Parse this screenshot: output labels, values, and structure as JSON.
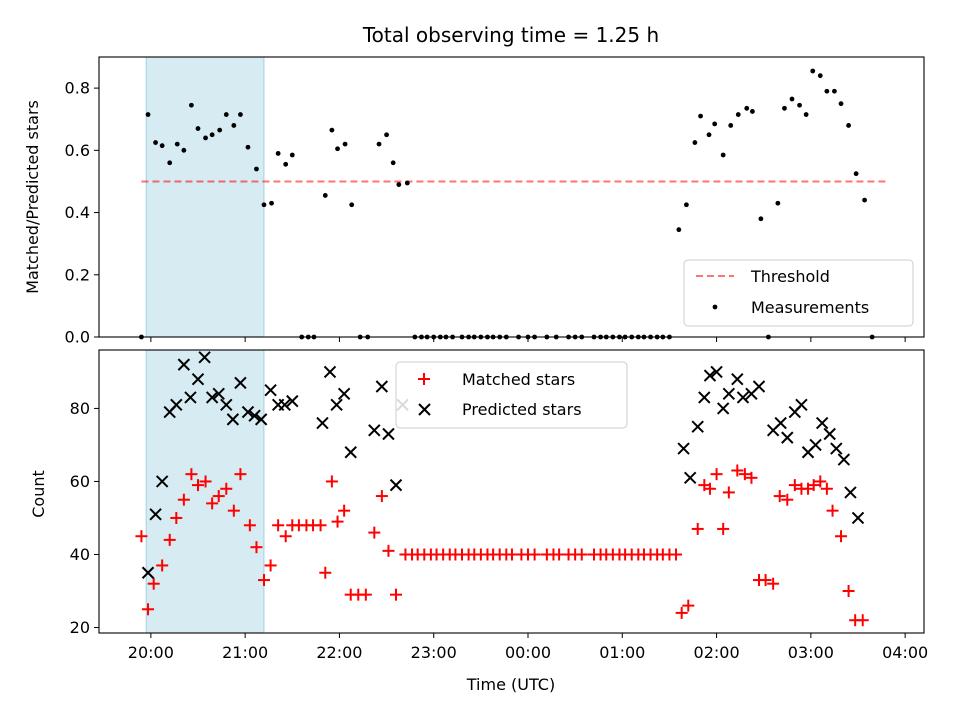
{
  "chart_data": [
    {
      "type": "scatter",
      "title": "Total observing time = 1.25 h",
      "xlabel": "",
      "ylabel": "Matched/Predicted stars",
      "xlim": [
        -0.55,
        8.2
      ],
      "ylim": [
        0,
        0.9
      ],
      "yticks": [
        "0.0",
        "0.2",
        "0.4",
        "0.6",
        "0.8"
      ],
      "shaded_x": [
        -0.05,
        1.2
      ],
      "shaded_color": "#add8e6",
      "legend_position": "lower right",
      "legend": {
        "threshold": "Threshold",
        "measurements": "Measurements"
      },
      "threshold": {
        "name": "Threshold",
        "value": 0.5,
        "x_range": [
          -0.1,
          7.8
        ],
        "color": "#ff0000"
      },
      "series": [
        {
          "name": "Measurements",
          "color": "#000000",
          "points": [
            [
              -0.1,
              0.0
            ],
            [
              -0.03,
              0.715
            ],
            [
              0.05,
              0.625
            ],
            [
              0.12,
              0.615
            ],
            [
              0.2,
              0.56
            ],
            [
              0.28,
              0.62
            ],
            [
              0.35,
              0.6
            ],
            [
              0.43,
              0.745
            ],
            [
              0.5,
              0.67
            ],
            [
              0.58,
              0.64
            ],
            [
              0.65,
              0.65
            ],
            [
              0.73,
              0.665
            ],
            [
              0.8,
              0.715
            ],
            [
              0.88,
              0.68
            ],
            [
              0.95,
              0.715
            ],
            [
              1.03,
              0.61
            ],
            [
              1.12,
              0.54
            ],
            [
              1.2,
              0.425
            ],
            [
              1.28,
              0.43
            ],
            [
              1.35,
              0.59
            ],
            [
              1.43,
              0.555
            ],
            [
              1.5,
              0.585
            ],
            [
              1.6,
              0.0
            ],
            [
              1.67,
              0.0
            ],
            [
              1.73,
              0.0
            ],
            [
              1.85,
              0.455
            ],
            [
              1.92,
              0.665
            ],
            [
              1.98,
              0.605
            ],
            [
              2.06,
              0.62
            ],
            [
              2.13,
              0.425
            ],
            [
              2.22,
              0.0
            ],
            [
              2.3,
              0.0
            ],
            [
              2.42,
              0.62
            ],
            [
              2.5,
              0.65
            ],
            [
              2.57,
              0.56
            ],
            [
              2.63,
              0.49
            ],
            [
              2.72,
              0.495
            ],
            [
              2.8,
              0.0
            ],
            [
              2.87,
              0.0
            ],
            [
              2.93,
              0.0
            ],
            [
              3.0,
              0.0
            ],
            [
              3.07,
              0.0
            ],
            [
              3.13,
              0.0
            ],
            [
              3.2,
              0.0
            ],
            [
              3.3,
              0.0
            ],
            [
              3.37,
              0.0
            ],
            [
              3.43,
              0.0
            ],
            [
              3.5,
              0.0
            ],
            [
              3.57,
              0.0
            ],
            [
              3.63,
              0.0
            ],
            [
              3.7,
              0.0
            ],
            [
              3.77,
              0.0
            ],
            [
              3.9,
              0.0
            ],
            [
              4.0,
              0.0
            ],
            [
              4.07,
              0.0
            ],
            [
              4.2,
              0.0
            ],
            [
              4.3,
              0.0
            ],
            [
              4.43,
              0.0
            ],
            [
              4.5,
              0.0
            ],
            [
              4.57,
              0.0
            ],
            [
              4.7,
              0.0
            ],
            [
              4.77,
              0.0
            ],
            [
              4.83,
              0.0
            ],
            [
              4.9,
              0.0
            ],
            [
              4.97,
              0.0
            ],
            [
              5.03,
              0.0
            ],
            [
              5.1,
              0.0
            ],
            [
              5.17,
              0.0
            ],
            [
              5.23,
              0.0
            ],
            [
              5.3,
              0.0
            ],
            [
              5.37,
              0.0
            ],
            [
              5.43,
              0.0
            ],
            [
              5.5,
              0.0
            ],
            [
              5.6,
              0.345
            ],
            [
              5.68,
              0.425
            ],
            [
              5.77,
              0.625
            ],
            [
              5.83,
              0.71
            ],
            [
              5.92,
              0.65
            ],
            [
              5.98,
              0.685
            ],
            [
              6.07,
              0.585
            ],
            [
              6.15,
              0.68
            ],
            [
              6.23,
              0.715
            ],
            [
              6.32,
              0.735
            ],
            [
              6.38,
              0.725
            ],
            [
              6.47,
              0.38
            ],
            [
              6.55,
              0.0
            ],
            [
              6.65,
              0.43
            ],
            [
              6.72,
              0.735
            ],
            [
              6.8,
              0.765
            ],
            [
              6.88,
              0.745
            ],
            [
              6.95,
              0.715
            ],
            [
              7.02,
              0.855
            ],
            [
              7.1,
              0.84
            ],
            [
              7.17,
              0.79
            ],
            [
              7.25,
              0.79
            ],
            [
              7.32,
              0.75
            ],
            [
              7.4,
              0.68
            ],
            [
              7.48,
              0.525
            ],
            [
              7.57,
              0.44
            ],
            [
              7.65,
              0.0
            ]
          ]
        }
      ]
    },
    {
      "type": "scatter",
      "title": "",
      "xlabel": "Time (UTC)",
      "ylabel": "Count",
      "xlim": [
        -0.55,
        8.2
      ],
      "ylim": [
        18.5,
        96
      ],
      "yticks": [
        "20",
        "40",
        "60",
        "80"
      ],
      "xticks": [
        "20:00",
        "21:00",
        "22:00",
        "23:00",
        "00:00",
        "01:00",
        "02:00",
        "03:00",
        "04:00"
      ],
      "shaded_x": [
        -0.05,
        1.2
      ],
      "legend_position": "upper center",
      "legend": {
        "matched": "Matched stars",
        "predicted": "Predicted stars"
      },
      "series": [
        {
          "name": "Matched stars",
          "color": "#ff0000",
          "marker": "plus",
          "points": [
            [
              -0.1,
              45
            ],
            [
              -0.03,
              25
            ],
            [
              0.03,
              32
            ],
            [
              0.12,
              37
            ],
            [
              0.2,
              44
            ],
            [
              0.27,
              50
            ],
            [
              0.35,
              55
            ],
            [
              0.43,
              62
            ],
            [
              0.5,
              59
            ],
            [
              0.58,
              60
            ],
            [
              0.65,
              54
            ],
            [
              0.72,
              56
            ],
            [
              0.8,
              58
            ],
            [
              0.88,
              52
            ],
            [
              0.95,
              62
            ],
            [
              1.05,
              48
            ],
            [
              1.12,
              42
            ],
            [
              1.2,
              33
            ],
            [
              1.27,
              37
            ],
            [
              1.35,
              48
            ],
            [
              1.43,
              45
            ],
            [
              1.5,
              48
            ],
            [
              1.57,
              48
            ],
            [
              1.65,
              48
            ],
            [
              1.72,
              48
            ],
            [
              1.8,
              48
            ],
            [
              1.85,
              35
            ],
            [
              1.92,
              60
            ],
            [
              1.98,
              49
            ],
            [
              2.05,
              52
            ],
            [
              2.12,
              29
            ],
            [
              2.2,
              29
            ],
            [
              2.28,
              29
            ],
            [
              2.37,
              46
            ],
            [
              2.45,
              56
            ],
            [
              2.52,
              41
            ],
            [
              2.6,
              29
            ],
            [
              2.7,
              40
            ],
            [
              2.77,
              40
            ],
            [
              2.83,
              40
            ],
            [
              2.9,
              40
            ],
            [
              2.97,
              40
            ],
            [
              3.03,
              40
            ],
            [
              3.1,
              40
            ],
            [
              3.17,
              40
            ],
            [
              3.23,
              40
            ],
            [
              3.3,
              40
            ],
            [
              3.37,
              40
            ],
            [
              3.43,
              40
            ],
            [
              3.5,
              40
            ],
            [
              3.57,
              40
            ],
            [
              3.63,
              40
            ],
            [
              3.7,
              40
            ],
            [
              3.77,
              40
            ],
            [
              3.83,
              40
            ],
            [
              3.93,
              40
            ],
            [
              4.0,
              40
            ],
            [
              4.07,
              40
            ],
            [
              4.2,
              40
            ],
            [
              4.27,
              40
            ],
            [
              4.33,
              40
            ],
            [
              4.43,
              40
            ],
            [
              4.5,
              40
            ],
            [
              4.57,
              40
            ],
            [
              4.7,
              40
            ],
            [
              4.77,
              40
            ],
            [
              4.83,
              40
            ],
            [
              4.9,
              40
            ],
            [
              4.97,
              40
            ],
            [
              5.03,
              40
            ],
            [
              5.1,
              40
            ],
            [
              5.17,
              40
            ],
            [
              5.23,
              40
            ],
            [
              5.3,
              40
            ],
            [
              5.37,
              40
            ],
            [
              5.43,
              40
            ],
            [
              5.5,
              40
            ],
            [
              5.57,
              40
            ],
            [
              5.63,
              24
            ],
            [
              5.7,
              26
            ],
            [
              5.8,
              47
            ],
            [
              5.87,
              59
            ],
            [
              5.93,
              58
            ],
            [
              6.0,
              62
            ],
            [
              6.07,
              47
            ],
            [
              6.13,
              57
            ],
            [
              6.22,
              63
            ],
            [
              6.3,
              62
            ],
            [
              6.37,
              61
            ],
            [
              6.45,
              33
            ],
            [
              6.52,
              33
            ],
            [
              6.6,
              32
            ],
            [
              6.67,
              56
            ],
            [
              6.75,
              55
            ],
            [
              6.83,
              59
            ],
            [
              6.9,
              58
            ],
            [
              6.97,
              58
            ],
            [
              7.03,
              59
            ],
            [
              7.1,
              60
            ],
            [
              7.17,
              58
            ],
            [
              7.23,
              52
            ],
            [
              7.32,
              45
            ],
            [
              7.4,
              30
            ],
            [
              7.47,
              22
            ],
            [
              7.55,
              22
            ]
          ]
        },
        {
          "name": "Predicted stars",
          "color": "#000000",
          "marker": "x",
          "points": [
            [
              -0.03,
              35
            ],
            [
              0.05,
              51
            ],
            [
              0.12,
              60
            ],
            [
              0.2,
              79
            ],
            [
              0.27,
              81
            ],
            [
              0.35,
              92
            ],
            [
              0.42,
              83
            ],
            [
              0.5,
              88
            ],
            [
              0.57,
              94
            ],
            [
              0.65,
              83
            ],
            [
              0.72,
              84
            ],
            [
              0.8,
              81
            ],
            [
              0.87,
              77
            ],
            [
              0.95,
              87
            ],
            [
              1.03,
              79
            ],
            [
              1.1,
              78
            ],
            [
              1.17,
              77
            ],
            [
              1.27,
              85
            ],
            [
              1.35,
              81
            ],
            [
              1.42,
              81
            ],
            [
              1.5,
              82
            ],
            [
              1.82,
              76
            ],
            [
              1.9,
              90
            ],
            [
              1.97,
              81
            ],
            [
              2.05,
              84
            ],
            [
              2.12,
              68
            ],
            [
              2.37,
              74
            ],
            [
              2.45,
              86
            ],
            [
              2.52,
              73
            ],
            [
              2.6,
              59
            ],
            [
              2.67,
              81
            ],
            [
              5.65,
              69
            ],
            [
              5.72,
              61
            ],
            [
              5.8,
              75
            ],
            [
              5.87,
              83
            ],
            [
              5.93,
              89
            ],
            [
              6.0,
              90
            ],
            [
              6.07,
              80
            ],
            [
              6.13,
              84
            ],
            [
              6.22,
              88
            ],
            [
              6.28,
              83
            ],
            [
              6.37,
              84
            ],
            [
              6.45,
              86
            ],
            [
              6.6,
              74
            ],
            [
              6.68,
              76
            ],
            [
              6.75,
              72
            ],
            [
              6.83,
              79
            ],
            [
              6.9,
              81
            ],
            [
              6.97,
              68
            ],
            [
              7.05,
              70
            ],
            [
              7.12,
              76
            ],
            [
              7.2,
              73
            ],
            [
              7.27,
              69
            ],
            [
              7.35,
              66
            ],
            [
              7.42,
              57
            ],
            [
              7.5,
              50
            ]
          ]
        }
      ]
    }
  ]
}
